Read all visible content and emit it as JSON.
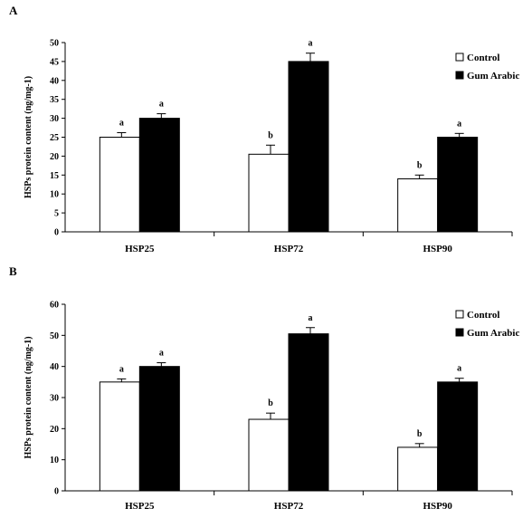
{
  "chart_data": [
    {
      "type": "bar",
      "panel_label": "A",
      "ylabel": "HSPs protein content (ng/mg-1)",
      "xlabel": "",
      "ylim": [
        0,
        50
      ],
      "yticks": [
        0,
        5,
        10,
        15,
        20,
        25,
        30,
        35,
        40,
        45,
        50
      ],
      "categories": [
        "HSP25",
        "HSP72",
        "HSP90"
      ],
      "legend_position": "top-right",
      "series": [
        {
          "name": "Control",
          "color": "#ffffff",
          "values": [
            25,
            20.5,
            14
          ],
          "errors": [
            1.2,
            2.4,
            1.0
          ],
          "labels": [
            "a",
            "b",
            "b"
          ]
        },
        {
          "name": "Gum Arabic",
          "color": "#000000",
          "values": [
            30,
            45,
            25
          ],
          "errors": [
            1.2,
            2.2,
            1.0
          ],
          "labels": [
            "a",
            "a",
            "a"
          ]
        }
      ]
    },
    {
      "type": "bar",
      "panel_label": "B",
      "ylabel": "HSPs protein content (ng/mg-1)",
      "xlabel": "",
      "ylim": [
        0,
        60
      ],
      "yticks": [
        0,
        10,
        20,
        30,
        40,
        50,
        60
      ],
      "categories": [
        "HSP25",
        "HSP72",
        "HSP90"
      ],
      "legend_position": "top-right",
      "series": [
        {
          "name": "Control",
          "color": "#ffffff",
          "values": [
            35,
            23,
            14
          ],
          "errors": [
            1.0,
            2.0,
            1.2
          ],
          "labels": [
            "a",
            "b",
            "b"
          ]
        },
        {
          "name": "Gum Arabic",
          "color": "#000000",
          "values": [
            40,
            50.5,
            35
          ],
          "errors": [
            1.2,
            2.0,
            1.2
          ],
          "labels": [
            "a",
            "a",
            "a"
          ]
        }
      ]
    }
  ]
}
